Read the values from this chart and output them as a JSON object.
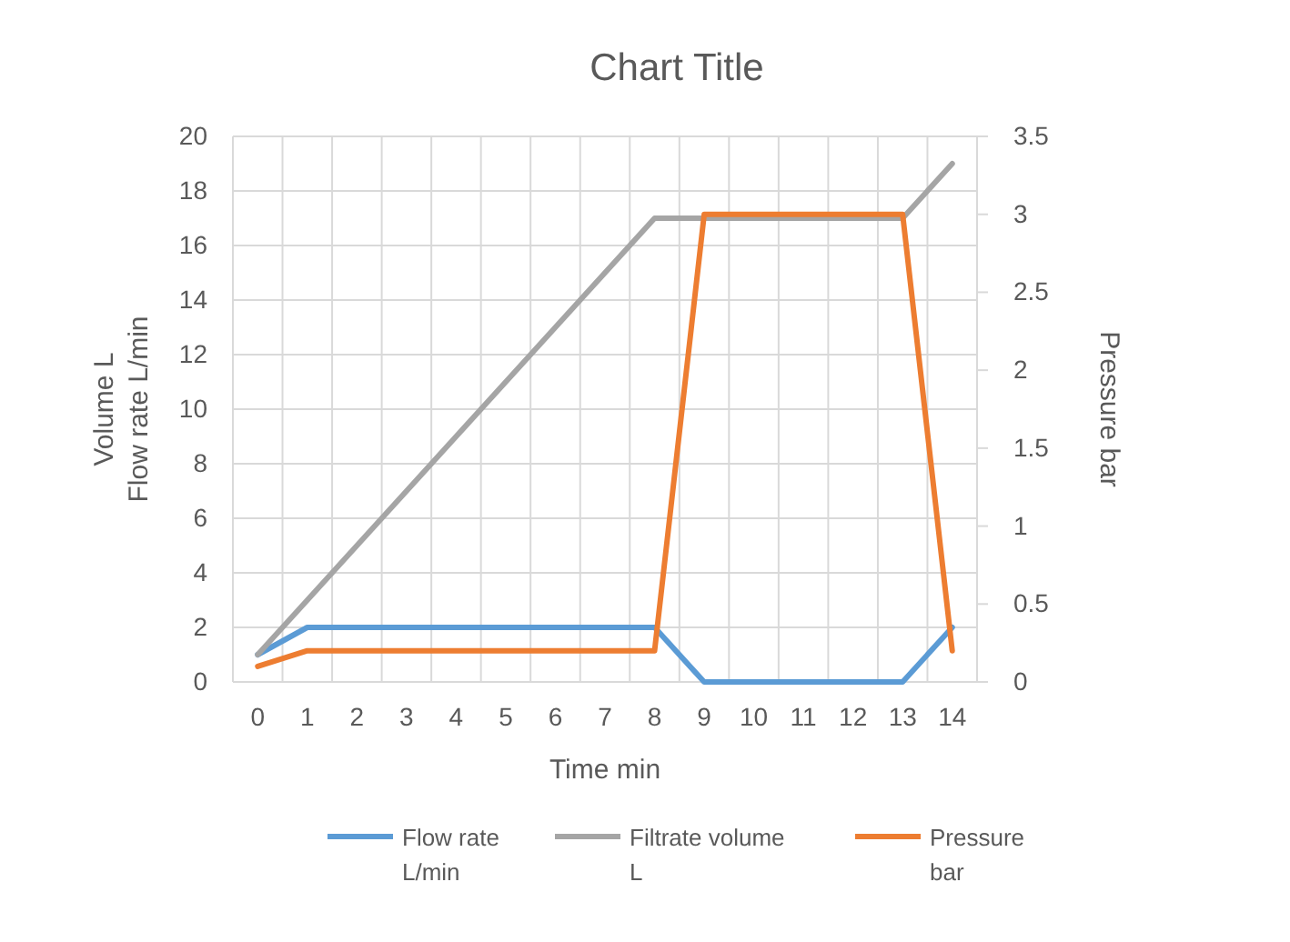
{
  "chart_data": {
    "type": "line",
    "title": "Chart Title",
    "xlabel": "Time min",
    "ylabel": "Volume L\nFlow rate L/min",
    "y2label": "Pressure bar",
    "categories": [
      "0",
      "1",
      "2",
      "3",
      "4",
      "5",
      "6",
      "7",
      "8",
      "9",
      "10",
      "11",
      "12",
      "13",
      "14"
    ],
    "series": [
      {
        "name": "Flow rate\nL/min",
        "color": "#5b9bd5",
        "values": [
          1,
          2,
          2,
          2,
          2,
          2,
          2,
          2,
          2,
          0,
          0,
          0,
          0,
          0,
          2
        ]
      },
      {
        "name": "Filtrate volume\nL",
        "color": "#a5a5a5",
        "values": [
          1,
          3,
          5,
          7,
          9,
          11,
          13,
          15,
          17,
          17,
          17,
          17,
          17,
          17,
          19
        ]
      },
      {
        "name": "Pressure\nbar",
        "color": "#ed7d31",
        "axis": "y2",
        "values": [
          0.1,
          0.2,
          0.2,
          0.2,
          0.2,
          0.2,
          0.2,
          0.2,
          0.2,
          3,
          3,
          3,
          3,
          3,
          0.2
        ]
      }
    ],
    "ylim": [
      0,
      20
    ],
    "yticks": [
      0,
      2,
      4,
      6,
      8,
      10,
      12,
      14,
      16,
      18,
      20
    ],
    "y2lim": [
      0,
      3.5
    ],
    "y2ticks": [
      0,
      0.5,
      1,
      1.5,
      2,
      2.5,
      3,
      3.5
    ],
    "grid": true,
    "legend": "bottom",
    "marker": "none",
    "line_style": "solid"
  }
}
